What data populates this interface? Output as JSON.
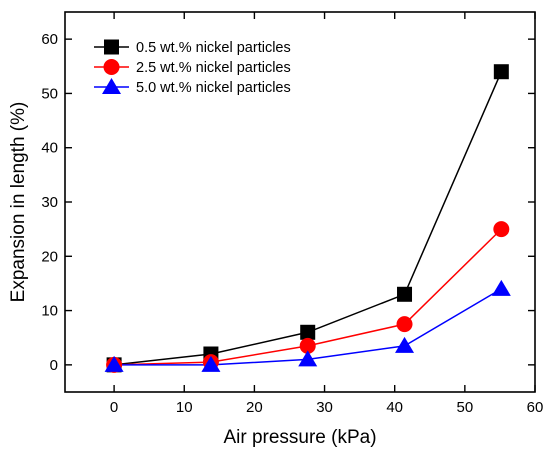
{
  "chart_data": {
    "type": "line",
    "title": "",
    "xlabel": "Air pressure (kPa)",
    "ylabel": "Expansion in length (%)",
    "xlim": [
      -7,
      60
    ],
    "ylim": [
      -5,
      65
    ],
    "xticks": [
      0,
      10,
      20,
      30,
      40,
      50,
      60
    ],
    "yticks": [
      0,
      10,
      20,
      30,
      40,
      50,
      60
    ],
    "grid": false,
    "legend_position": "top-left",
    "x": [
      0,
      13.8,
      27.6,
      41.4,
      55.2
    ],
    "series": [
      {
        "name": "0.5 wt.% nickel particles",
        "marker": "square",
        "color": "#000000",
        "values": [
          0,
          2,
          6,
          13,
          54
        ]
      },
      {
        "name": "2.5 wt.% nickel particles",
        "marker": "circle",
        "color": "#ff0000",
        "values": [
          0,
          0.5,
          3.5,
          7.5,
          25
        ]
      },
      {
        "name": "5.0 wt.% nickel particles",
        "marker": "triangle",
        "color": "#0000ff",
        "values": [
          0,
          0,
          1,
          3.5,
          14
        ]
      }
    ]
  }
}
